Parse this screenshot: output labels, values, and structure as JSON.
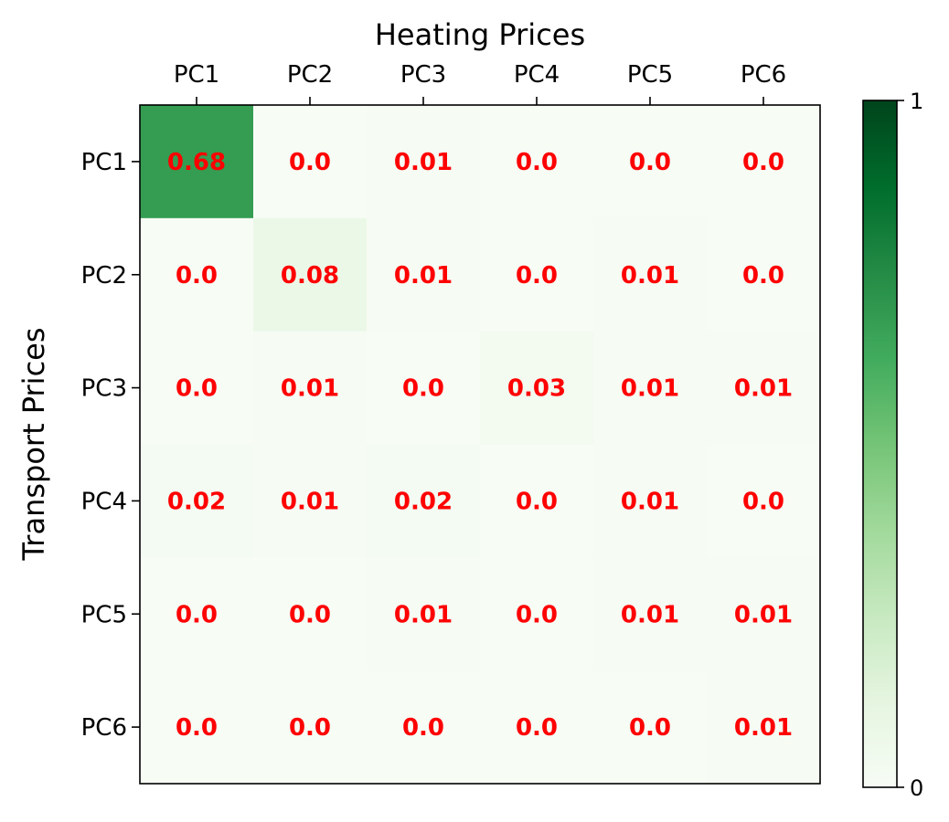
{
  "chart_data": {
    "type": "heatmap",
    "title": "Heating Prices",
    "xlabel": "",
    "ylabel": "Transport Prices",
    "x_categories": [
      "PC1",
      "PC2",
      "PC3",
      "PC4",
      "PC5",
      "PC6"
    ],
    "y_categories": [
      "PC1",
      "PC2",
      "PC3",
      "PC4",
      "PC5",
      "PC6"
    ],
    "values": [
      [
        0.68,
        0.0,
        0.01,
        0.0,
        0.0,
        0.0
      ],
      [
        0.0,
        0.08,
        0.01,
        0.0,
        0.01,
        0.0
      ],
      [
        0.0,
        0.01,
        0.0,
        0.03,
        0.01,
        0.01
      ],
      [
        0.02,
        0.01,
        0.02,
        0.0,
        0.01,
        0.0
      ],
      [
        0.0,
        0.0,
        0.01,
        0.0,
        0.01,
        0.01
      ],
      [
        0.0,
        0.0,
        0.0,
        0.0,
        0.0,
        0.01
      ]
    ],
    "value_range": [
      0,
      1
    ],
    "colormap": "Greens",
    "colormap_stops": [
      "#f7fcf5",
      "#e5f5e0",
      "#c7e9c0",
      "#a1d99b",
      "#74c476",
      "#41ab5d",
      "#238b45",
      "#006d2c",
      "#00441b"
    ],
    "annotation_color": "#ff0000",
    "colorbar": {
      "ticks": [
        "0",
        "1"
      ],
      "tick_values": [
        0,
        1
      ]
    },
    "x_axis_position": "top",
    "grid": false,
    "legend": "none"
  }
}
